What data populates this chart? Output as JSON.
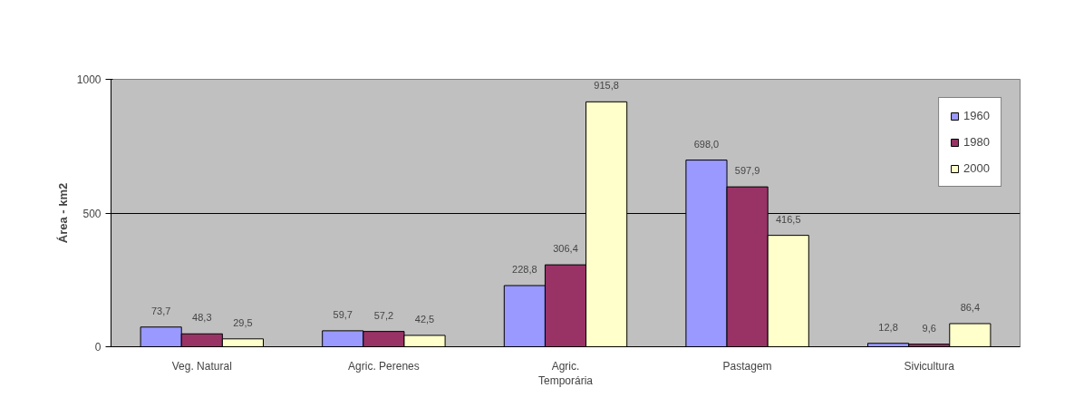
{
  "chart_data": {
    "type": "bar",
    "ylabel": "Área - km2",
    "categories": [
      "Veg. Natural",
      "Agric. Perenes",
      "Agric. Temporária",
      "Pastagem",
      "Sivicultura"
    ],
    "series": [
      {
        "name": "1960",
        "color": "#9999ff",
        "values": [
          73.7,
          59.7,
          228.8,
          698.0,
          12.8
        ],
        "value_labels": [
          "73,7",
          "59,7",
          "228,8",
          "698,0",
          "12,8"
        ]
      },
      {
        "name": "1980",
        "color": "#993366",
        "values": [
          48.3,
          57.2,
          306.4,
          597.9,
          9.6
        ],
        "value_labels": [
          "48,3",
          "57,2",
          "306,4",
          "597,9",
          "9,6"
        ]
      },
      {
        "name": "2000",
        "color": "#ffffcc",
        "values": [
          29.5,
          42.5,
          915.8,
          416.5,
          86.4
        ],
        "value_labels": [
          "29,5",
          "42,5",
          "915,8",
          "416,5",
          "86,4"
        ]
      }
    ],
    "ylim": [
      0,
      1000
    ],
    "yticks": [
      0,
      500,
      1000
    ],
    "grid": "y",
    "legend": "top right"
  }
}
